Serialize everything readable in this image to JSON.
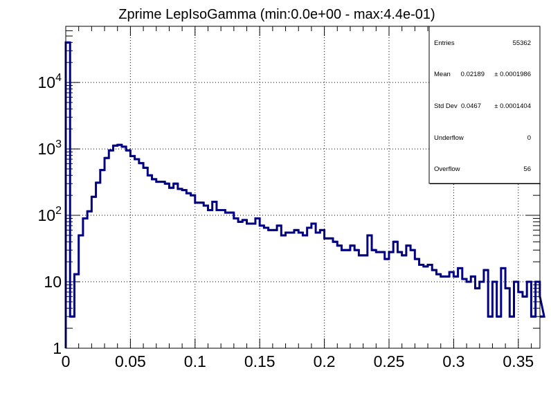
{
  "chart_data": {
    "type": "histogram",
    "title": "Zprime LepIsoGamma (min:0.0e+00 - max:4.4e-01)",
    "xlabel": "",
    "ylabel": "",
    "xlim": [
      0,
      0.3667
    ],
    "ylim": [
      1,
      70000
    ],
    "yscale": "log",
    "grid": true,
    "line_color": "#000080",
    "bin_width": 0.003333,
    "x_ticks": [
      {
        "value": 0,
        "label": "0"
      },
      {
        "value": 0.05,
        "label": "0.05"
      },
      {
        "value": 0.1,
        "label": "0.1"
      },
      {
        "value": 0.15,
        "label": "0.15"
      },
      {
        "value": 0.2,
        "label": "0.2"
      },
      {
        "value": 0.25,
        "label": "0.25"
      },
      {
        "value": 0.3,
        "label": "0.3"
      },
      {
        "value": 0.35,
        "label": "0.35"
      }
    ],
    "y_ticks": [
      {
        "value": 1,
        "label": "1"
      },
      {
        "value": 10,
        "label": "10"
      },
      {
        "value": 100,
        "base": "10",
        "exp": "2"
      },
      {
        "value": 1000,
        "base": "10",
        "exp": "3"
      },
      {
        "value": 10000,
        "base": "10",
        "exp": "4"
      }
    ],
    "values": [
      40000,
      3,
      13,
      50,
      90,
      115,
      190,
      310,
      480,
      730,
      950,
      1120,
      1150,
      1080,
      950,
      780,
      700,
      610,
      520,
      400,
      350,
      320,
      320,
      300,
      260,
      300,
      250,
      240,
      215,
      200,
      155,
      155,
      140,
      120,
      160,
      120,
      120,
      110,
      110,
      90,
      80,
      85,
      75,
      75,
      90,
      70,
      65,
      60,
      60,
      70,
      50,
      55,
      55,
      60,
      55,
      50,
      65,
      75,
      55,
      60,
      45,
      45,
      40,
      35,
      30,
      30,
      35,
      30,
      25,
      25,
      50,
      30,
      28,
      28,
      22,
      28,
      40,
      28,
      25,
      35,
      30,
      22,
      18,
      17,
      18,
      15,
      13,
      12,
      12,
      14,
      12,
      16,
      11,
      10,
      12,
      8,
      10,
      15,
      3,
      10,
      3,
      16,
      8,
      3,
      10,
      7,
      6,
      10,
      3,
      10,
      6,
      3
    ]
  },
  "stats": {
    "entries_label": "Entries",
    "entries_value": "55362",
    "mean_label": "Mean",
    "mean_value": "0.02189",
    "mean_error": "± 0.0001986",
    "stddev_label": "Std Dev",
    "stddev_value": "0.0467",
    "stddev_error": "± 0.0001404",
    "underflow_label": "Underflow",
    "underflow_value": "0",
    "overflow_label": "Overflow",
    "overflow_value": "56"
  }
}
